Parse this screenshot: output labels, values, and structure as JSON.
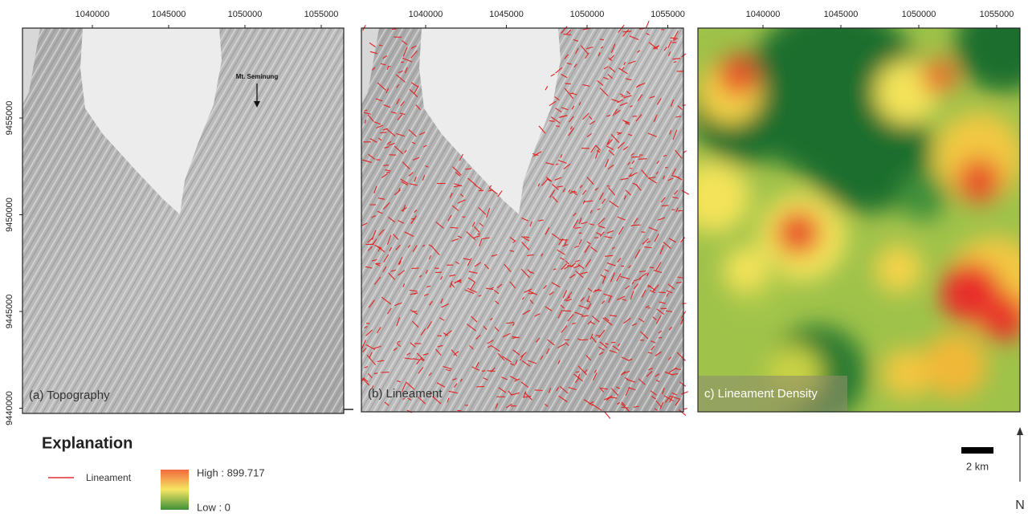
{
  "map": {
    "x_ticks": [
      1040000,
      1045000,
      1050000,
      1055000
    ],
    "y_ticks": [
      9455000,
      9450000,
      9445000,
      9440000
    ],
    "panels": [
      {
        "label": "(a) Topography",
        "annotation": "Mt. Seminung"
      },
      {
        "label": "(b) Lineament"
      },
      {
        "label": "c) Lineament Density"
      }
    ]
  },
  "legend": {
    "title": "Explanation",
    "lineament": "Lineament",
    "high": "High : 899.717",
    "low": "Low : 0"
  },
  "scale_bar": "2 km",
  "north": "N"
}
